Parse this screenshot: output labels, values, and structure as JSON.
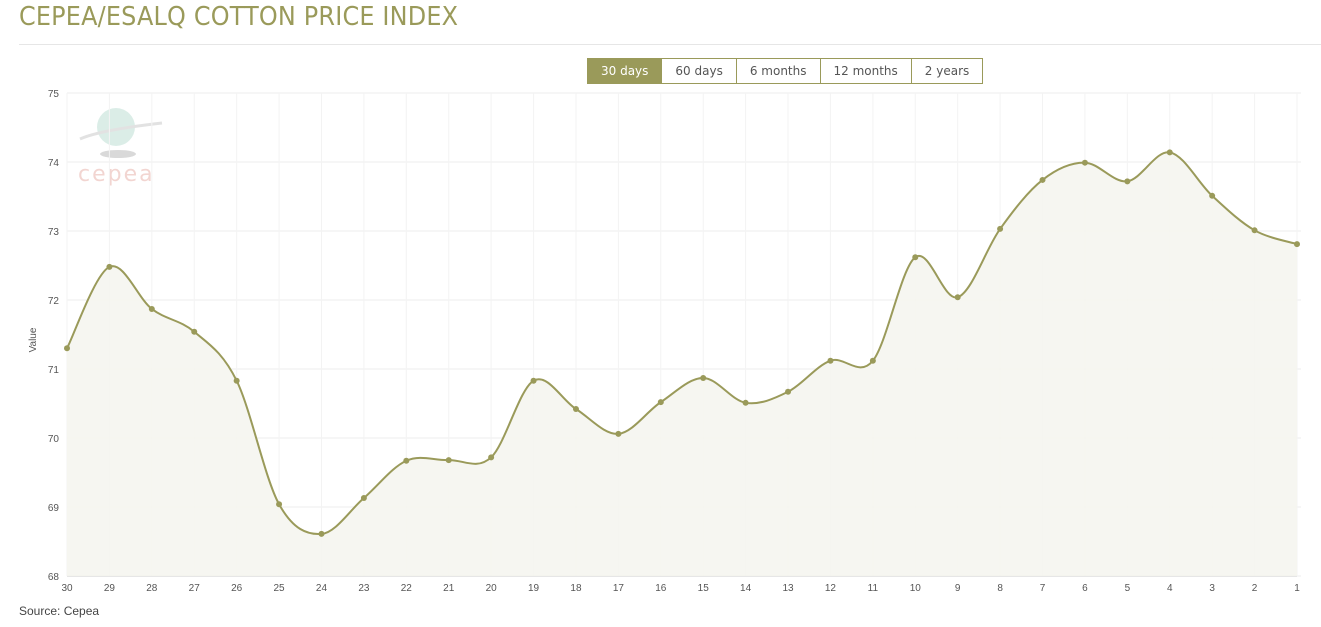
{
  "header": {
    "title": "CEPEA/ESALQ COTTON PRICE INDEX"
  },
  "range_buttons": [
    {
      "label": "30 days",
      "active": true
    },
    {
      "label": "60 days"
    },
    {
      "label": "6 months"
    },
    {
      "label": "12 months"
    },
    {
      "label": "2 years"
    }
  ],
  "source": "Source: Cepea",
  "logo_text": "cepea",
  "colors": {
    "line": "#9a9a5a",
    "fill": "#f5f5f0",
    "grid": "#eeeeee"
  },
  "chart_data": {
    "type": "area",
    "ylabel": "Value",
    "ylim": [
      68,
      75
    ],
    "yticks": [
      68,
      69,
      70,
      71,
      72,
      73,
      74,
      75
    ],
    "grid": true,
    "categories": [
      "30",
      "29",
      "28",
      "27",
      "26",
      "25",
      "24",
      "23",
      "22",
      "21",
      "20",
      "19",
      "18",
      "17",
      "16",
      "15",
      "14",
      "13",
      "12",
      "11",
      "10",
      "9",
      "8",
      "7",
      "6",
      "5",
      "4",
      "3",
      "2",
      "1"
    ],
    "values": [
      71.3,
      72.48,
      71.87,
      71.54,
      70.83,
      69.04,
      68.61,
      69.13,
      69.67,
      69.68,
      69.72,
      70.83,
      70.42,
      70.06,
      70.52,
      70.87,
      70.51,
      70.67,
      71.12,
      71.12,
      72.62,
      72.04,
      73.03,
      73.74,
      73.99,
      73.72,
      74.14,
      73.51,
      73.01,
      72.81
    ]
  }
}
